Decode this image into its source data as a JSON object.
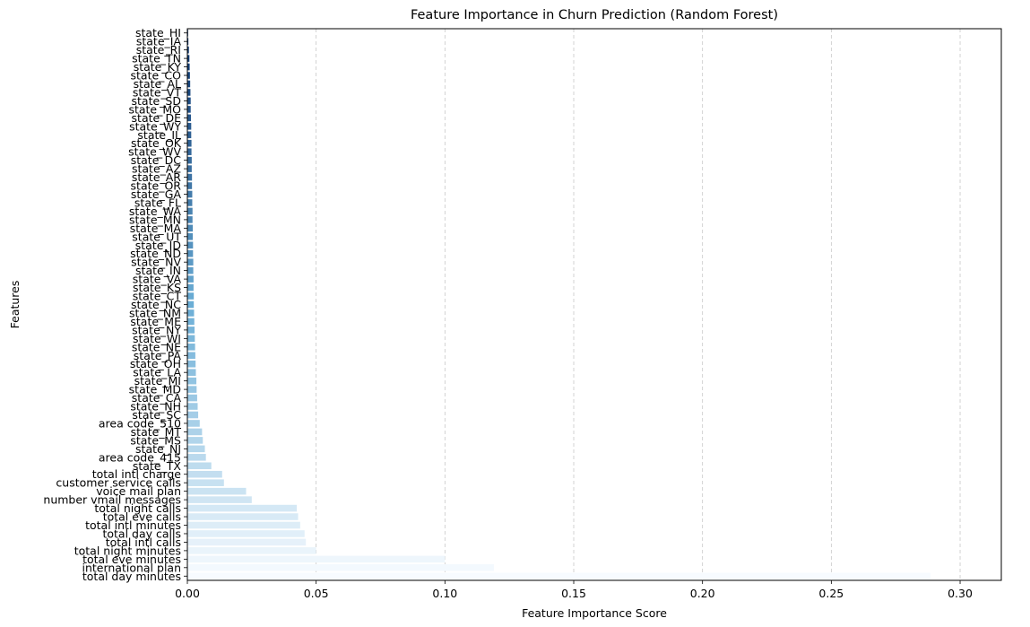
{
  "chart_data": {
    "type": "bar",
    "orientation": "horizontal",
    "title": "Feature Importance in Churn Prediction (Random Forest)",
    "xlabel": "Feature Importance Score",
    "ylabel": "Features",
    "xlim": [
      0,
      0.316
    ],
    "xticks": [
      0.0,
      0.05,
      0.1,
      0.15,
      0.2,
      0.25,
      0.3
    ],
    "xtick_labels": [
      "0.00",
      "0.05",
      "0.10",
      "0.15",
      "0.20",
      "0.25",
      "0.30"
    ],
    "grid": "x-dashed",
    "palette": "Blues (dark at top, light at bottom)",
    "categories": [
      "state_HI",
      "state_IA",
      "state_RI",
      "state_TN",
      "state_KY",
      "state_CO",
      "state_AL",
      "state_VT",
      "state_SD",
      "state_MO",
      "state_DE",
      "state_WY",
      "state_IL",
      "state_OK",
      "state_WV",
      "state_DC",
      "state_AZ",
      "state_AR",
      "state_OR",
      "state_GA",
      "state_FL",
      "state_WA",
      "state_MN",
      "state_MA",
      "state_UT",
      "state_ID",
      "state_ND",
      "state_NV",
      "state_IN",
      "state_VA",
      "state_KS",
      "state_CT",
      "state_NC",
      "state_NM",
      "state_ME",
      "state_NY",
      "state_WI",
      "state_NE",
      "state_PA",
      "state_OH",
      "state_LA",
      "state_MI",
      "state_MD",
      "state_CA",
      "state_NH",
      "state_SC",
      "area code_510",
      "state_MT",
      "state_MS",
      "state_NJ",
      "area code_415",
      "state_TX",
      "total intl charge",
      "customer service calls",
      "voice mail plan",
      "number vmail messages",
      "total night calls",
      "total eve calls",
      "total intl minutes",
      "total day calls",
      "total intl calls",
      "total night minutes",
      "total eve minutes",
      "international plan",
      "total day minutes"
    ],
    "values": [
      0.0003,
      0.0004,
      0.0006,
      0.0008,
      0.0009,
      0.001,
      0.0011,
      0.0012,
      0.0013,
      0.0013,
      0.0014,
      0.0015,
      0.0015,
      0.0016,
      0.0016,
      0.0017,
      0.0017,
      0.0018,
      0.0018,
      0.0019,
      0.0019,
      0.002,
      0.002,
      0.0021,
      0.0021,
      0.0022,
      0.0022,
      0.0023,
      0.0023,
      0.0024,
      0.0024,
      0.0025,
      0.0025,
      0.0026,
      0.0027,
      0.0028,
      0.0029,
      0.003,
      0.0031,
      0.0032,
      0.0033,
      0.0035,
      0.0036,
      0.0038,
      0.004,
      0.0042,
      0.0048,
      0.0057,
      0.006,
      0.0068,
      0.0072,
      0.0093,
      0.0135,
      0.0142,
      0.0228,
      0.025,
      0.0425,
      0.043,
      0.0438,
      0.0455,
      0.046,
      0.05,
      0.1,
      0.119,
      0.2885
    ]
  }
}
